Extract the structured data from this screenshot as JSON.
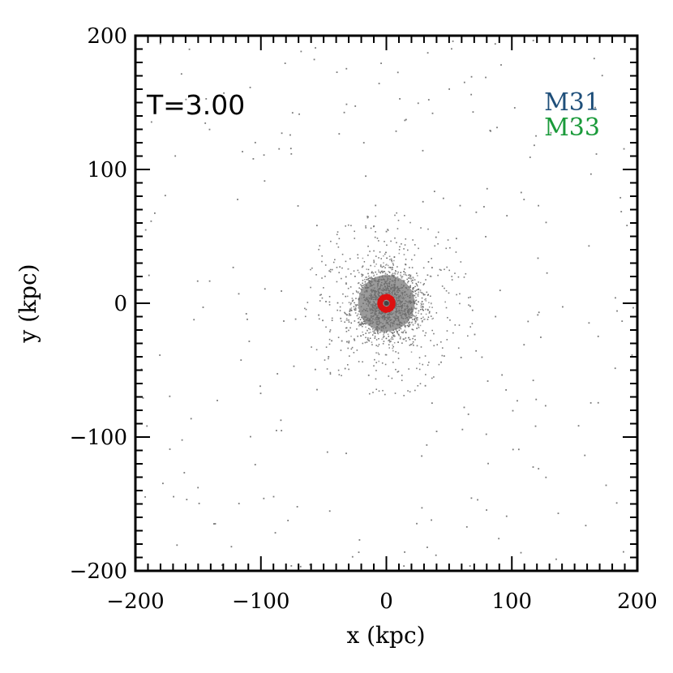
{
  "chart_data": {
    "type": "scatter",
    "xlabel": "x (kpc)",
    "ylabel": "y (kpc)",
    "xlim": [
      -200,
      200
    ],
    "ylim": [
      -200,
      200
    ],
    "grid": false,
    "xticks": [
      -200,
      -100,
      0,
      100,
      200
    ],
    "yticks": [
      -200,
      -100,
      0,
      100,
      200
    ],
    "xtick_labels": [
      "−200",
      "−100",
      "0",
      "100",
      "200"
    ],
    "ytick_labels": [
      "−200",
      "−100",
      "0",
      "100",
      "200"
    ],
    "annotation": "T=3.00",
    "legend_position": "top-right",
    "series": [
      {
        "name": "M31",
        "color": "#1f4f7a",
        "marker_color": "#7a7a7a",
        "distribution": "dense gray particle cloud centred at (0, 0), core radius about 25 kpc, sparse halo out to 200 kpc"
      },
      {
        "name": "M33",
        "color": "#1a9a3a",
        "marker_color": "#dd1111",
        "distribution": "compact red cluster at (0, 0), radius about 5 kpc"
      }
    ],
    "cores": [
      {
        "series": "M31",
        "x": 0,
        "y": 0,
        "radius": 25
      },
      {
        "series": "M33",
        "x": 0,
        "y": 0,
        "radius": 5
      }
    ]
  }
}
